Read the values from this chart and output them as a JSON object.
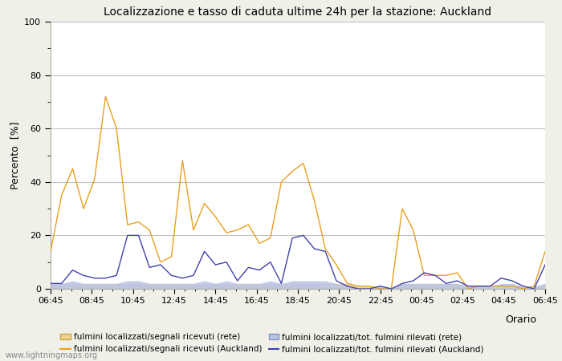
{
  "title": "Localizzazione e tasso di caduta ultime 24h per la stazione: Auckland",
  "ylabel": "Percento  [%]",
  "xlabel": "Orario",
  "watermark": "www.lightningmaps.org",
  "ylim": [
    0,
    100
  ],
  "x_ticks": [
    "06:45",
    "08:45",
    "10:45",
    "12:45",
    "14:45",
    "16:45",
    "18:45",
    "20:45",
    "22:45",
    "00:45",
    "02:45",
    "04:45",
    "06:45"
  ],
  "orange_line": [
    14,
    35,
    45,
    30,
    41,
    72,
    60,
    24,
    25,
    22,
    10,
    12,
    48,
    22,
    32,
    27,
    21,
    22,
    24,
    17,
    19,
    40,
    44,
    47,
    33,
    15,
    9,
    2,
    1,
    1,
    0,
    0,
    30,
    22,
    5,
    5,
    5,
    6,
    0,
    1,
    1,
    1,
    1,
    0,
    1,
    14
  ],
  "blue_line": [
    2,
    2,
    7,
    5,
    4,
    4,
    5,
    20,
    20,
    8,
    9,
    5,
    4,
    5,
    14,
    9,
    10,
    3,
    8,
    7,
    10,
    2,
    19,
    20,
    15,
    14,
    3,
    1,
    0,
    0,
    1,
    0,
    2,
    3,
    6,
    5,
    2,
    3,
    1,
    1,
    1,
    4,
    3,
    1,
    0,
    9
  ],
  "orange_fill": [
    2,
    2,
    2,
    2,
    2,
    2,
    2,
    2,
    2,
    2,
    2,
    2,
    2,
    2,
    2,
    2,
    2,
    2,
    2,
    2,
    2,
    2,
    2,
    2,
    2,
    2,
    2,
    2,
    1,
    1,
    0,
    0,
    2,
    2,
    2,
    2,
    2,
    2,
    0,
    0,
    0,
    0,
    0,
    0,
    0,
    2
  ],
  "blue_fill": [
    2,
    2,
    3,
    2,
    2,
    2,
    2,
    3,
    3,
    2,
    2,
    2,
    2,
    2,
    3,
    2,
    3,
    2,
    2,
    2,
    3,
    2,
    3,
    3,
    3,
    3,
    2,
    1,
    0,
    0,
    1,
    0,
    2,
    2,
    2,
    2,
    2,
    2,
    1,
    1,
    1,
    2,
    2,
    1,
    1,
    2
  ],
  "bg_color": "#f0f0e8",
  "plot_bg": "#ffffff",
  "grid_color": "#c0c0c0",
  "title_fontsize": 10,
  "tick_fontsize": 8,
  "label_fontsize": 9,
  "orange_line_color": "#e8a020",
  "blue_line_color": "#4040b0",
  "orange_fill_color": "#f0d090",
  "blue_fill_color": "#b8c4e8"
}
